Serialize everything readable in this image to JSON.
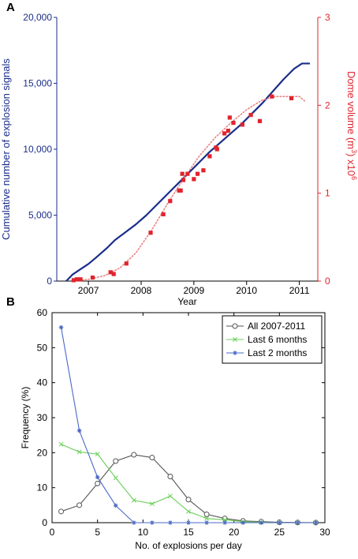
{
  "chart_data": [
    {
      "panel_label": "A",
      "type": "line",
      "xlabel": "Year",
      "x_tick_labels": [
        "2007",
        "2008",
        "2009",
        "2010",
        "2011"
      ],
      "xlim": [
        2006.4,
        2011.35
      ],
      "y_left": {
        "label": "Cumulative number of explosion signals",
        "ylim": [
          0,
          20000
        ],
        "ticks": [
          0,
          5000,
          10000,
          15000,
          20000
        ],
        "tick_labels": [
          "0",
          "5,000",
          "10,000",
          "15,000",
          "20,000"
        ],
        "color": "#1a2d8a"
      },
      "y_right": {
        "label_main": "Dome volume (m",
        "label_sup1": "3",
        "label_mid": ") x10",
        "label_sup2": "6",
        "ylim": [
          0,
          3
        ],
        "ticks": [
          0,
          1,
          2,
          3
        ],
        "tick_labels": [
          "0",
          "1",
          "2",
          "3"
        ],
        "color": "#e0242c"
      },
      "series": [
        {
          "kind": "line-left",
          "color": "#1a2d8a",
          "x": [
            2006.58,
            2006.7,
            2006.85,
            2007.0,
            2007.15,
            2007.35,
            2007.5,
            2007.7,
            2007.9,
            2008.1,
            2008.3,
            2008.5,
            2008.7,
            2008.9,
            2009.1,
            2009.3,
            2009.5,
            2009.7,
            2009.9,
            2010.1,
            2010.3,
            2010.5,
            2010.7,
            2010.9,
            2011.05,
            2011.2
          ],
          "y": [
            0,
            500,
            900,
            1300,
            1800,
            2500,
            3100,
            3700,
            4300,
            5000,
            5800,
            6600,
            7400,
            8200,
            9000,
            9800,
            10500,
            11200,
            11900,
            12700,
            13500,
            14400,
            15300,
            16100,
            16500,
            16500
          ]
        },
        {
          "kind": "dotted-right",
          "color": "#e88484",
          "x": [
            2006.7,
            2007.0,
            2007.3,
            2007.6,
            2007.9,
            2008.2,
            2008.5,
            2008.8,
            2009.1,
            2009.4,
            2009.7,
            2010.0,
            2010.3,
            2010.55,
            2010.8,
            2011.0,
            2011.1
          ],
          "y": [
            0.0,
            0.02,
            0.06,
            0.15,
            0.32,
            0.58,
            0.88,
            1.16,
            1.42,
            1.63,
            1.8,
            1.95,
            2.06,
            2.1,
            2.1,
            2.1,
            2.05
          ]
        },
        {
          "kind": "scatter-right",
          "color": "#e0242c",
          "x": [
            2006.72,
            2006.78,
            2006.85,
            2007.08,
            2007.42,
            2007.48,
            2007.72,
            2008.18,
            2008.42,
            2008.55,
            2008.72,
            2008.75,
            2008.78,
            2008.8,
            2008.88,
            2009.0,
            2009.07,
            2009.18,
            2009.3,
            2009.42,
            2009.44,
            2009.58,
            2009.65,
            2009.68,
            2009.75,
            2009.92,
            2010.08,
            2010.25,
            2010.48,
            2010.85
          ],
          "y": [
            0.01,
            0.02,
            0.02,
            0.04,
            0.1,
            0.08,
            0.2,
            0.55,
            0.76,
            0.91,
            1.03,
            1.03,
            1.22,
            1.15,
            1.22,
            1.16,
            1.22,
            1.26,
            1.42,
            1.52,
            1.5,
            1.68,
            1.71,
            1.86,
            1.8,
            1.78,
            1.89,
            1.82,
            2.1,
            2.08
          ]
        }
      ]
    },
    {
      "panel_label": "B",
      "type": "line",
      "xlabel": "No. of explosions per day",
      "ylabel": "Frequency (%)",
      "xlim": [
        0,
        30
      ],
      "ylim": [
        0,
        60
      ],
      "x_ticks": [
        0,
        5,
        10,
        15,
        20,
        25,
        30
      ],
      "y_ticks": [
        0,
        10,
        20,
        30,
        40,
        50,
        60
      ],
      "legend": "top-right",
      "series": [
        {
          "name": "All 2007-2011",
          "color": "#555555",
          "marker": "circle",
          "x": [
            1,
            3,
            5,
            7,
            9,
            11,
            13,
            15,
            17,
            19,
            21,
            23,
            25,
            27,
            29
          ],
          "y": [
            3.2,
            5.0,
            11.2,
            17.6,
            19.4,
            18.6,
            13.2,
            6.6,
            2.4,
            1.2,
            0.5,
            0.3,
            0.1,
            0.05,
            0.02
          ]
        },
        {
          "name": "Last 6 months",
          "color": "#6bcf5a",
          "marker": "x",
          "x": [
            1,
            3,
            5,
            7,
            9,
            11,
            13,
            15,
            17,
            19,
            21,
            23,
            25,
            27,
            29
          ],
          "y": [
            22.4,
            20.2,
            19.6,
            12.8,
            6.4,
            5.4,
            7.6,
            3.2,
            1.2,
            0.8,
            0.3,
            0.1,
            0,
            0,
            0
          ]
        },
        {
          "name": "Last 2 months",
          "color": "#4a68c8",
          "marker": "asterisk",
          "x": [
            1,
            3,
            5,
            7,
            9,
            11,
            13,
            15,
            17,
            19,
            21,
            23,
            25,
            27,
            29
          ],
          "y": [
            55.8,
            26.3,
            13.0,
            4.9,
            0,
            0,
            0,
            0,
            0,
            0,
            0,
            0,
            0,
            0,
            0
          ]
        }
      ]
    }
  ]
}
